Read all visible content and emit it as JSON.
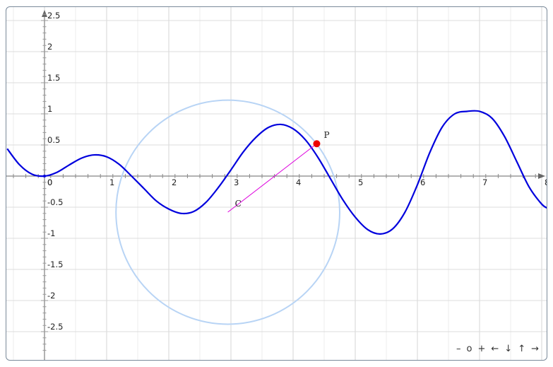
{
  "chart_data": {
    "type": "line",
    "xlim": [
      -0.6,
      8.1
    ],
    "ylim": [
      -2.9,
      2.65
    ],
    "grid": true,
    "x_ticks": [
      0,
      1,
      2,
      3,
      4,
      5,
      6,
      7,
      8
    ],
    "y_ticks": [
      2.5,
      2,
      1.5,
      1,
      0.5,
      -0.5,
      -1,
      -1.5,
      -2,
      -2.5
    ],
    "x_tick_labels": [
      "0",
      "1",
      "2",
      "3",
      "4",
      "5",
      "6",
      "7",
      "8"
    ],
    "y_tick_labels": [
      "2.5",
      "2",
      "1.5",
      "1",
      "0.5",
      "-0.5",
      "-1",
      "-1.5",
      "-2",
      "-2.5"
    ],
    "origin_label": "0",
    "curve_color": "#0000dd",
    "circle_color": "#b8d4f5",
    "segment_color": "#dd00dd",
    "point_color": "#ee0000",
    "curve": {
      "x": [
        -0.6,
        -0.4,
        -0.2,
        0.0,
        0.2,
        0.4,
        0.6,
        0.8,
        1.0,
        1.2,
        1.4,
        1.6,
        1.8,
        2.0,
        2.2,
        2.4,
        2.6,
        2.8,
        3.0,
        3.2,
        3.4,
        3.6,
        3.8,
        4.0,
        4.2,
        4.4,
        4.6,
        4.8,
        5.0,
        5.2,
        5.4,
        5.6,
        5.8,
        6.0,
        6.2,
        6.4,
        6.6,
        6.8,
        7.0,
        7.2,
        7.4,
        7.6,
        7.8,
        8.0,
        8.1
      ],
      "y": [
        0.44,
        0.18,
        0.03,
        0.0,
        0.06,
        0.18,
        0.29,
        0.34,
        0.31,
        0.19,
        0.0,
        -0.2,
        -0.4,
        -0.53,
        -0.6,
        -0.57,
        -0.42,
        -0.18,
        0.1,
        0.39,
        0.62,
        0.78,
        0.83,
        0.76,
        0.58,
        0.3,
        -0.04,
        -0.38,
        -0.66,
        -0.86,
        -0.93,
        -0.85,
        -0.58,
        -0.14,
        0.38,
        0.79,
        1.0,
        1.04,
        1.04,
        0.93,
        0.64,
        0.23,
        -0.18,
        -0.45,
        -0.52
      ]
    },
    "circle": {
      "cx": 2.95,
      "cy": -0.58,
      "r": 1.8
    },
    "points": [
      {
        "name": "P",
        "x": 4.38,
        "y": 0.52
      },
      {
        "name": "C",
        "x": 2.95,
        "y": -0.58
      }
    ]
  },
  "nav": {
    "zoom_out": "–",
    "reset": "o",
    "zoom_in": "+",
    "left": "←",
    "down": "↓",
    "up": "↑",
    "right": "→"
  }
}
